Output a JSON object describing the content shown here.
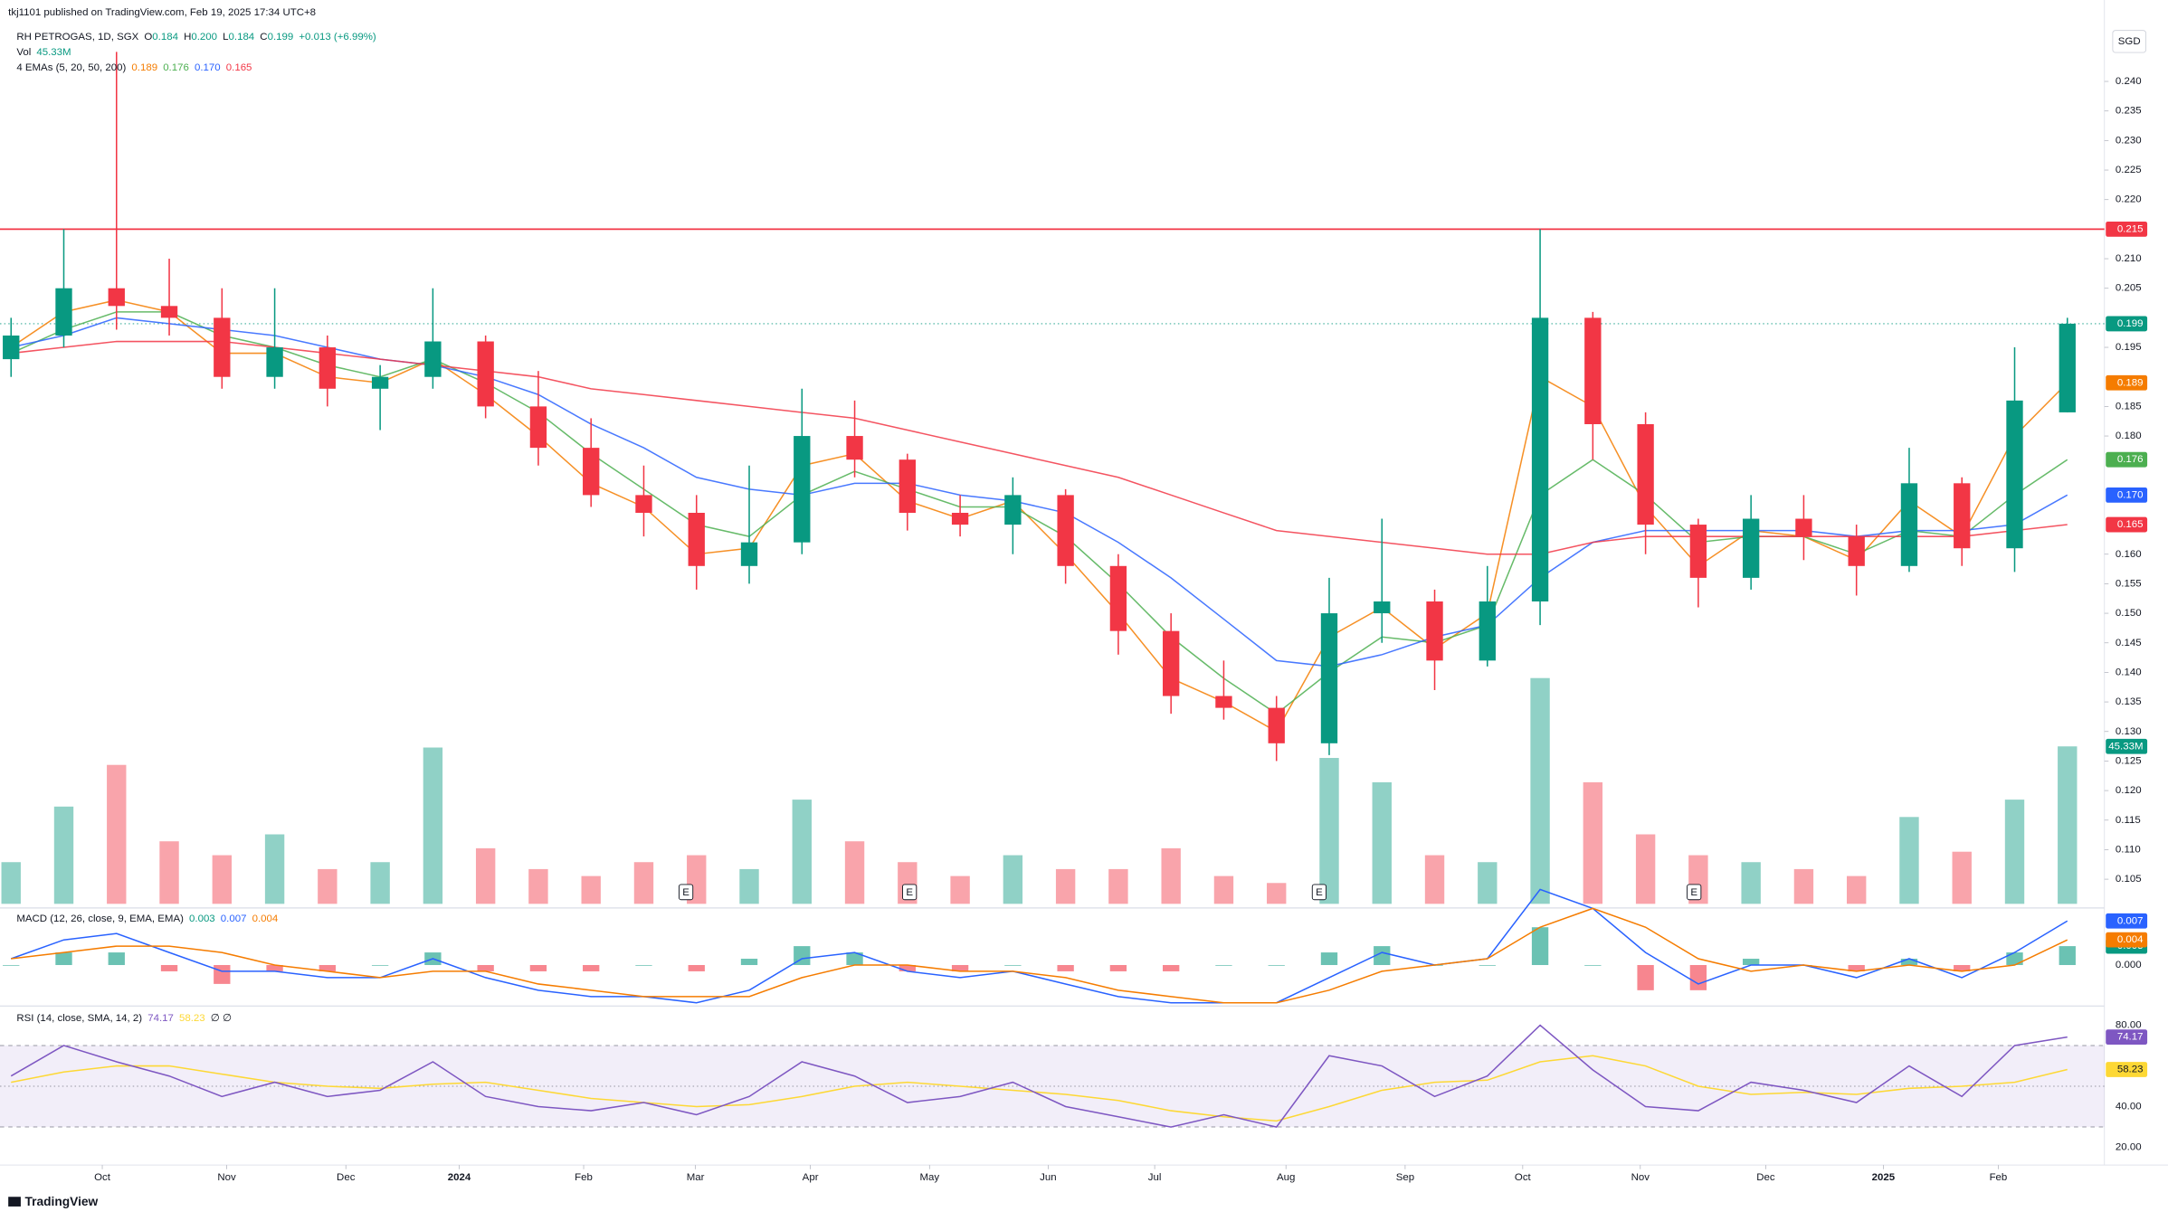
{
  "header": {
    "publisher": "tkj1101 published on TradingView.com, Feb 19, 2025 17:34 UTC+8"
  },
  "footer": {
    "logo": "TradingView"
  },
  "chart_data": {
    "type": "candlestick",
    "symbol": "RH PETROGAS, 1D, SGX",
    "currency": "SGD",
    "ohlc_labels": [
      "O",
      "H",
      "L",
      "C"
    ],
    "ohlc": [
      0.184,
      0.2,
      0.184,
      0.199
    ],
    "ohlc_value_labels": [
      "0.184",
      "0.200",
      "0.184",
      "0.199"
    ],
    "change": "+0.013 (+6.99%)",
    "xlim": [
      0,
      39.65
    ],
    "xticks": [
      {
        "value": 1.73,
        "label": "Oct"
      },
      {
        "value": 4.09,
        "label": "Nov"
      },
      {
        "value": 6.35,
        "label": "Dec"
      },
      {
        "value": 8.5,
        "label": "2024"
      },
      {
        "value": 10.86,
        "label": "Feb"
      },
      {
        "value": 12.98,
        "label": "Mar"
      },
      {
        "value": 15.16,
        "label": "Apr"
      },
      {
        "value": 17.42,
        "label": "May"
      },
      {
        "value": 19.67,
        "label": "Jun"
      },
      {
        "value": 21.69,
        "label": "Jul"
      },
      {
        "value": 24.18,
        "label": "Aug"
      },
      {
        "value": 26.44,
        "label": "Sep"
      },
      {
        "value": 28.67,
        "label": "Oct"
      },
      {
        "value": 30.9,
        "label": "Nov"
      },
      {
        "value": 33.28,
        "label": "Dec"
      },
      {
        "value": 35.51,
        "label": "2025"
      },
      {
        "value": 37.69,
        "label": "Feb"
      }
    ],
    "ylim": [
      0.1006,
      0.2491
    ],
    "yticks": [
      {
        "value": 0.105,
        "label": "0.105"
      },
      {
        "value": 0.11,
        "label": "0.110"
      },
      {
        "value": 0.115,
        "label": "0.115"
      },
      {
        "value": 0.12,
        "label": "0.120"
      },
      {
        "value": 0.125,
        "label": "0.125"
      },
      {
        "value": 0.13,
        "label": "0.130"
      },
      {
        "value": 0.135,
        "label": "0.135"
      },
      {
        "value": 0.14,
        "label": "0.140"
      },
      {
        "value": 0.145,
        "label": "0.145"
      },
      {
        "value": 0.15,
        "label": "0.150"
      },
      {
        "value": 0.155,
        "label": "0.155"
      },
      {
        "value": 0.16,
        "label": "0.160"
      },
      {
        "value": 0.18,
        "label": "0.180"
      },
      {
        "value": 0.185,
        "label": "0.185"
      },
      {
        "value": 0.195,
        "label": "0.195"
      },
      {
        "value": 0.205,
        "label": "0.205"
      },
      {
        "value": 0.21,
        "label": "0.210"
      },
      {
        "value": 0.22,
        "label": "0.220"
      },
      {
        "value": 0.225,
        "label": "0.225"
      },
      {
        "value": 0.23,
        "label": "0.230"
      },
      {
        "value": 0.235,
        "label": "0.235"
      },
      {
        "value": 0.24,
        "label": "0.240"
      }
    ],
    "up_color": "#089981",
    "down_color": "#f23645",
    "open": [
      0.193,
      0.197,
      0.205,
      0.202,
      0.2,
      0.19,
      0.195,
      0.188,
      0.19,
      0.196,
      0.185,
      0.178,
      0.17,
      0.167,
      0.158,
      0.162,
      0.18,
      0.176,
      0.167,
      0.165,
      0.17,
      0.158,
      0.147,
      0.136,
      0.134,
      0.128,
      0.15,
      0.152,
      0.142,
      0.152,
      0.2,
      0.182,
      0.165,
      0.156,
      0.166,
      0.163,
      0.158,
      0.172,
      0.161,
      0.184
    ],
    "high": [
      0.2,
      0.215,
      0.245,
      0.21,
      0.205,
      0.205,
      0.197,
      0.192,
      0.205,
      0.197,
      0.191,
      0.183,
      0.175,
      0.17,
      0.175,
      0.188,
      0.186,
      0.177,
      0.17,
      0.173,
      0.171,
      0.16,
      0.15,
      0.142,
      0.136,
      0.156,
      0.166,
      0.154,
      0.158,
      0.215,
      0.201,
      0.184,
      0.166,
      0.17,
      0.17,
      0.165,
      0.178,
      0.173,
      0.195,
      0.2
    ],
    "low": [
      0.19,
      0.195,
      0.198,
      0.197,
      0.188,
      0.188,
      0.185,
      0.181,
      0.188,
      0.183,
      0.175,
      0.168,
      0.163,
      0.154,
      0.155,
      0.16,
      0.173,
      0.164,
      0.163,
      0.16,
      0.155,
      0.143,
      0.133,
      0.132,
      0.125,
      0.126,
      0.145,
      0.137,
      0.141,
      0.148,
      0.176,
      0.16,
      0.151,
      0.154,
      0.159,
      0.153,
      0.157,
      0.158,
      0.157,
      0.184
    ],
    "close": [
      0.197,
      0.205,
      0.202,
      0.2,
      0.19,
      0.195,
      0.188,
      0.19,
      0.196,
      0.185,
      0.178,
      0.17,
      0.167,
      0.158,
      0.162,
      0.18,
      0.176,
      0.167,
      0.165,
      0.17,
      0.158,
      0.147,
      0.136,
      0.134,
      0.128,
      0.15,
      0.152,
      0.142,
      0.152,
      0.2,
      0.182,
      0.165,
      0.156,
      0.166,
      0.163,
      0.158,
      0.172,
      0.161,
      0.186,
      0.199
    ],
    "hline": {
      "value": 0.215,
      "label": "0.215",
      "color": "#f23645"
    },
    "earnings": {
      "label": "E",
      "x": [
        12.8,
        17.04,
        24.81,
        31.92
      ]
    },
    "emas": {
      "title": "4 EMAs (5, 20, 50, 200)",
      "legend_values": [
        0.189,
        0.176,
        0.17,
        0.165
      ],
      "legend_value_labels": [
        "0.189",
        "0.176",
        "0.170",
        "0.165"
      ],
      "series": [
        {
          "color": "#f57c00",
          "values": [
            0.195,
            0.201,
            0.203,
            0.201,
            0.194,
            0.194,
            0.19,
            0.189,
            0.193,
            0.187,
            0.18,
            0.172,
            0.168,
            0.16,
            0.161,
            0.175,
            0.177,
            0.169,
            0.166,
            0.169,
            0.16,
            0.15,
            0.139,
            0.135,
            0.13,
            0.146,
            0.151,
            0.144,
            0.15,
            0.19,
            0.185,
            0.168,
            0.158,
            0.164,
            0.163,
            0.159,
            0.169,
            0.163,
            0.18,
            0.189
          ]
        },
        {
          "color": "#4caf50",
          "values": [
            0.194,
            0.198,
            0.201,
            0.201,
            0.197,
            0.195,
            0.192,
            0.19,
            0.193,
            0.189,
            0.184,
            0.177,
            0.171,
            0.165,
            0.163,
            0.17,
            0.174,
            0.171,
            0.168,
            0.168,
            0.163,
            0.155,
            0.146,
            0.139,
            0.133,
            0.14,
            0.146,
            0.145,
            0.148,
            0.17,
            0.176,
            0.17,
            0.162,
            0.163,
            0.163,
            0.16,
            0.164,
            0.163,
            0.17,
            0.176
          ]
        },
        {
          "color": "#2962ff",
          "values": [
            0.195,
            0.197,
            0.2,
            0.199,
            0.198,
            0.197,
            0.195,
            0.193,
            0.192,
            0.19,
            0.187,
            0.182,
            0.178,
            0.173,
            0.171,
            0.17,
            0.172,
            0.172,
            0.17,
            0.169,
            0.167,
            0.162,
            0.156,
            0.149,
            0.142,
            0.141,
            0.143,
            0.146,
            0.148,
            0.156,
            0.162,
            0.164,
            0.164,
            0.164,
            0.164,
            0.163,
            0.164,
            0.164,
            0.165,
            0.17
          ]
        },
        {
          "color": "#f23645",
          "values": [
            0.194,
            0.195,
            0.196,
            0.196,
            0.196,
            0.195,
            0.194,
            0.193,
            0.192,
            0.191,
            0.19,
            0.188,
            0.187,
            0.186,
            0.185,
            0.184,
            0.183,
            0.181,
            0.179,
            0.177,
            0.175,
            0.173,
            0.17,
            0.167,
            0.164,
            0.163,
            0.162,
            0.161,
            0.16,
            0.16,
            0.162,
            0.163,
            0.163,
            0.163,
            0.163,
            0.163,
            0.163,
            0.163,
            0.164,
            0.165
          ]
        }
      ]
    },
    "volume": {
      "title": "Vol",
      "value": 45.33,
      "value_label": "45.33M",
      "ylim": [
        0,
        150
      ],
      "color": "#089981",
      "values": [
        12,
        28,
        40,
        18,
        14,
        20,
        10,
        12,
        45,
        16,
        10,
        8,
        12,
        14,
        10,
        30,
        18,
        12,
        8,
        14,
        10,
        10,
        16,
        8,
        6,
        42,
        35,
        14,
        12,
        65,
        35,
        20,
        14,
        12,
        10,
        8,
        25,
        15,
        30,
        45.33
      ]
    },
    "macd": {
      "title": "MACD (12, 26, close, 9, EMA, EMA)",
      "legend_values": [
        0.003,
        0.007,
        0.004
      ],
      "legend_colors": [
        "#089981",
        "#2962ff",
        "#f57c00"
      ],
      "ylim": [
        -0.0063,
        0.0084
      ],
      "yticks": [
        {
          "value": 0,
          "label": "0.000"
        }
      ],
      "macd_color": "#2962ff",
      "signal_color": "#f57c00",
      "macd": [
        0.001,
        0.004,
        0.005,
        0.002,
        -0.001,
        -0.001,
        -0.002,
        -0.002,
        0.001,
        -0.002,
        -0.004,
        -0.005,
        -0.005,
        -0.006,
        -0.004,
        0.001,
        0.002,
        -0.001,
        -0.002,
        -0.001,
        -0.003,
        -0.005,
        -0.006,
        -0.006,
        -0.006,
        -0.002,
        0.002,
        0,
        0.001,
        0.012,
        0.009,
        0.002,
        -0.003,
        0,
        0,
        -0.002,
        0.001,
        -0.002,
        0.002,
        0.007
      ],
      "signal": [
        0.001,
        0.002,
        0.003,
        0.003,
        0.002,
        0,
        -0.001,
        -0.002,
        -0.001,
        -0.001,
        -0.003,
        -0.004,
        -0.005,
        -0.005,
        -0.005,
        -0.002,
        0,
        0,
        -0.001,
        -0.001,
        -0.002,
        -0.004,
        -0.005,
        -0.006,
        -0.006,
        -0.004,
        -0.001,
        0,
        0.001,
        0.006,
        0.009,
        0.006,
        0.001,
        -0.001,
        0,
        -0.001,
        0,
        -0.001,
        0,
        0.004
      ],
      "histogram": [
        0,
        0.002,
        0.002,
        -0.001,
        -0.003,
        -0.001,
        -0.001,
        0,
        0.002,
        -0.001,
        -0.001,
        -0.001,
        0,
        -0.001,
        0.001,
        0.003,
        0.002,
        -0.001,
        -0.001,
        0,
        -0.001,
        -0.001,
        -0.001,
        0,
        0,
        0.002,
        0.003,
        0,
        0,
        0.006,
        0,
        -0.004,
        -0.004,
        0.001,
        0,
        -0.001,
        0.001,
        -0.001,
        0.002,
        0.003
      ]
    },
    "rsi": {
      "title": "RSI (14, close, SMA, 14, 2)",
      "legend_values": [
        74.17,
        58.23
      ],
      "extra": "∅ ∅",
      "ylim": [
        12,
        88
      ],
      "bands": [
        70,
        50,
        30
      ],
      "yticks": [
        {
          "value": 80,
          "label": "80.00"
        },
        {
          "value": 40,
          "label": "40.00"
        },
        {
          "value": 20,
          "label": "20.00"
        }
      ],
      "rsi_color": "#7e57c2",
      "sma_color": "#fdd835",
      "rsi": [
        55,
        70,
        62,
        55,
        45,
        52,
        45,
        48,
        62,
        45,
        40,
        38,
        42,
        36,
        45,
        62,
        55,
        42,
        45,
        52,
        40,
        35,
        30,
        36,
        30,
        65,
        60,
        45,
        55,
        80,
        58,
        40,
        38,
        52,
        48,
        42,
        60,
        45,
        70,
        74.17
      ],
      "sma": [
        52,
        57,
        60,
        60,
        56,
        52,
        50,
        49,
        51,
        52,
        48,
        44,
        42,
        40,
        41,
        45,
        50,
        52,
        50,
        48,
        46,
        43,
        38,
        35,
        33,
        40,
        48,
        52,
        53,
        62,
        65,
        60,
        50,
        46,
        47,
        46,
        49,
        50,
        52,
        58.23
      ]
    }
  }
}
